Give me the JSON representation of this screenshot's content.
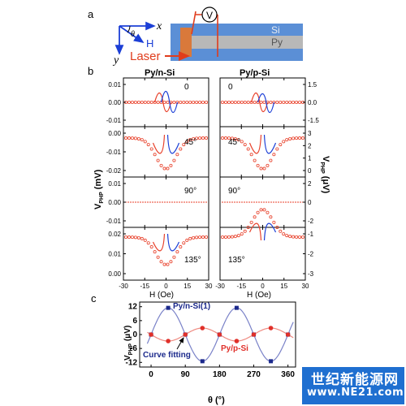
{
  "panel_labels": {
    "a": "a",
    "b": "b",
    "c": "c"
  },
  "schematic": {
    "axis_x": "x",
    "axis_y": "y",
    "field_label": "H",
    "angle_symbol": "θ",
    "laser_label": "Laser",
    "voltmeter_label": "V",
    "si_label": "Si",
    "py_label": "Py",
    "colors": {
      "substrate": "#5b8fd6",
      "py_strip": "#b8b8b8",
      "laser": "#e03c1c",
      "pad": "#d9793b"
    }
  },
  "panel_b": {
    "left_title": "Py/n-Si",
    "right_title": "Py/p-Si",
    "left_ylabel": "V",
    "left_ylabel_sub": "PHP",
    "left_ylabel_unit": " (mV)",
    "right_ylabel": "V",
    "right_ylabel_sub": "PHP",
    "right_ylabel_unit": " (μV)",
    "xlabel": "H (Oe)",
    "angle_labels": [
      "0",
      "45°",
      "90°",
      "135°"
    ],
    "x_ticks": [
      "-30",
      "-15",
      "0",
      "15",
      "30"
    ],
    "left_yticks": [
      [
        "0.01",
        "0.00",
        "-0.01"
      ],
      [
        "0.00",
        "-0.01",
        "-0.02"
      ],
      [
        "0.01",
        "0.00",
        "-0.01"
      ],
      [
        "0.02",
        "0.01",
        "0.00"
      ]
    ],
    "right_yticks": [
      [
        "1.5",
        "0.0",
        "-1.5"
      ],
      [
        "3",
        "2",
        "1",
        "0"
      ],
      [
        "2",
        "0",
        "-2"
      ],
      [
        "-1",
        "-2",
        "-3"
      ]
    ],
    "colors": {
      "sweep_up": "#e8412b",
      "sweep_down": "#1c3fd6",
      "markers": "#e8412b"
    }
  },
  "panel_c": {
    "ylabel": "V",
    "ylabel_sub": "PHP",
    "ylabel_unit": " (μV)",
    "xlabel": "θ (°)",
    "series_n_label": "Py/n-Si(1)",
    "series_p_label": "Py/p-Si",
    "fit_label": "Curve fitting",
    "x_ticks": [
      "0",
      "90",
      "180",
      "270",
      "360"
    ],
    "y_ticks": [
      "12",
      "6",
      "0",
      "-6",
      "-12"
    ],
    "colors": {
      "n_si": "#1c2a8c",
      "p_si": "#e0302a",
      "fit_n": "#7a82c8",
      "fit_p": "#ef8a80"
    }
  },
  "chart_data": {
    "type": "scatter",
    "xlabel": "θ (°)",
    "ylabel": "VPHP (μV)",
    "xlim": [
      -30,
      380
    ],
    "ylim": [
      -14,
      14
    ],
    "x": [
      0,
      45,
      90,
      135,
      180,
      225,
      270,
      315,
      360
    ],
    "series": [
      {
        "name": "Py/n-Si(1)",
        "values": [
          0,
          11.5,
          0,
          -11.5,
          0,
          11.5,
          0,
          -11.5,
          0
        ]
      },
      {
        "name": "Py/p-Si",
        "values": [
          0,
          -2.8,
          0,
          2.8,
          0,
          -2.8,
          0,
          2.8,
          0
        ]
      }
    ]
  },
  "watermark": {
    "cn": "世纪新能源网",
    "url": "www.NE21.com"
  }
}
